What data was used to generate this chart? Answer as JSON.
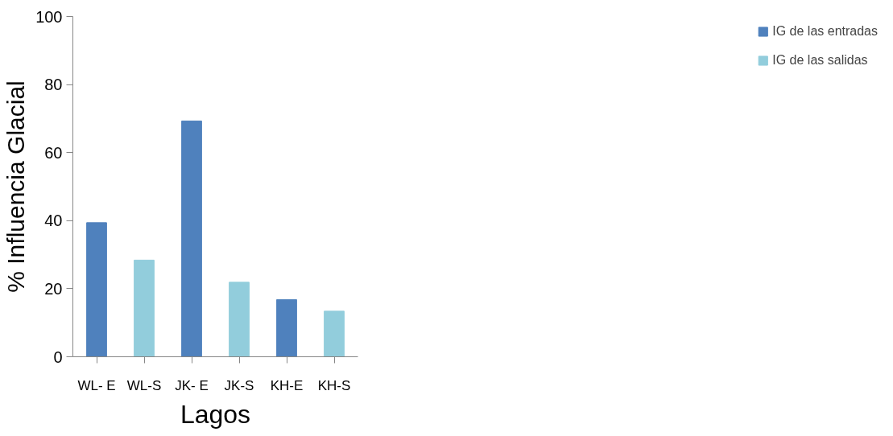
{
  "chart_data": {
    "type": "bar",
    "xlabel": "Lagos",
    "ylabel": "% Influencia Glacial",
    "categories": [
      "WL- E",
      "WL-S",
      "JK- E",
      "JK-S",
      "KH-E",
      "KH-S"
    ],
    "series": [
      {
        "name": "IG de las entradas",
        "color": "#4f81bd",
        "values": [
          39.4,
          null,
          69.3,
          null,
          16.8,
          null
        ]
      },
      {
        "name": "IG de las salidas",
        "color": "#92cddc",
        "values": [
          null,
          28.4,
          null,
          21.9,
          null,
          13.4
        ]
      }
    ],
    "ylim": [
      0,
      100
    ],
    "yticks": [
      0,
      20,
      40,
      60,
      80,
      100
    ],
    "grid": false,
    "legend": "right"
  }
}
